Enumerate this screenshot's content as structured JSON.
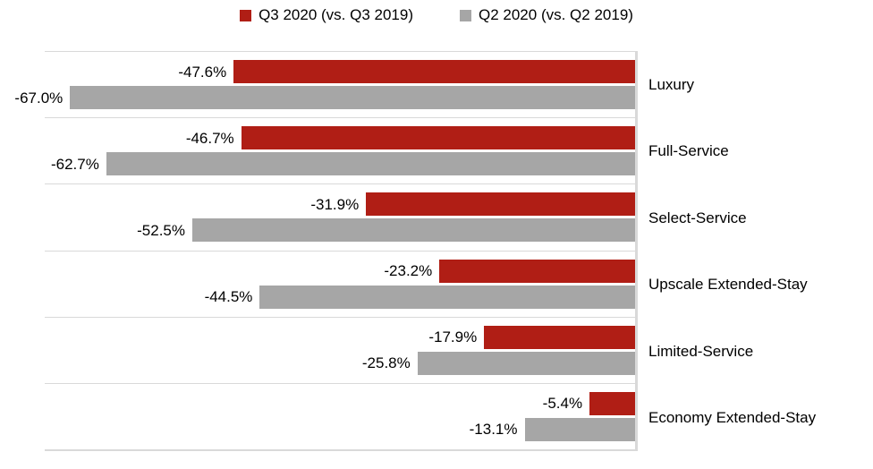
{
  "chart_data": {
    "type": "bar",
    "orientation": "horizontal",
    "title": "",
    "categories": [
      "Luxury",
      "Full-Service",
      "Select-Service",
      "Upscale Extended-Stay",
      "Limited-Service",
      "Economy Extended-Stay"
    ],
    "series": [
      {
        "name": "Q3 2020 (vs. Q3 2019)",
        "color": "#B01E15",
        "values": [
          -47.6,
          -46.7,
          -31.9,
          -23.2,
          -17.9,
          -5.4
        ]
      },
      {
        "name": "Q2 2020 (vs. Q2 2019)",
        "color": "#A6A6A6",
        "values": [
          -67.0,
          -62.7,
          -52.5,
          -44.5,
          -25.8,
          -13.1
        ]
      }
    ],
    "xlim": [
      -70,
      0
    ],
    "value_labels_visible": true,
    "value_label_suffix": "%",
    "legend_position": "top",
    "grid": "horizontal category separators",
    "gridline_color": "#D9D9D9",
    "axis_line_color": "#D9D9D9",
    "text_color": "#000000",
    "background_color": "#FFFFFF"
  }
}
